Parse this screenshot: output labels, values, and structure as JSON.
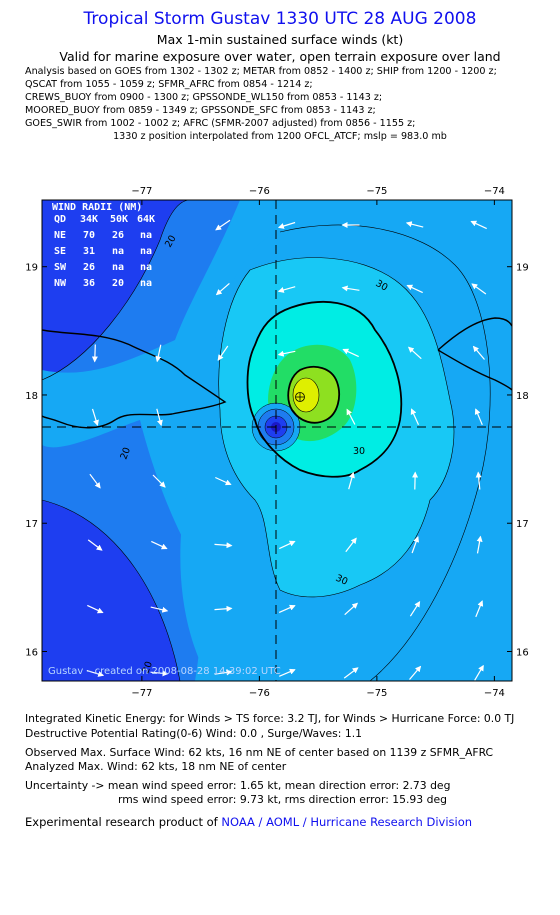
{
  "header": {
    "title": "Tropical Storm Gustav 1330 UTC 28 AUG 2008",
    "subtitle1": "Max 1-min sustained surface winds (kt)",
    "subtitle2": "Valid for marine exposure over water, open terrain exposure over land",
    "sources": [
      "Analysis based on  GOES from 1302 - 1302 z;  METAR from 0852 - 1400 z;  SHIP from 1200 - 1200 z;",
      "QSCAT from 1055 - 1059 z;  SFMR_AFRC from 0854 - 1214 z;",
      "CREWS_BUOY from 0900 - 1300 z;  GPSSONDE_WL150 from 0853 - 1143 z;",
      "MOORED_BUOY from 0859 - 1349 z;  GPSSONDE_SFC from 0853 - 1143 z;",
      "GOES_SWIR from 1002 - 1002 z;  AFRC (SFMR-2007 adjusted) from 0856 - 1155 z;",
      "1330 z position interpolated from 1200 OFCL_ATCF; mslp = 983.0 mb"
    ]
  },
  "map": {
    "lon_labels": [
      "−77",
      "−76",
      "−75",
      "−74"
    ],
    "lat_labels": [
      "19",
      "18",
      "17",
      "16"
    ],
    "lon_values": [
      -77,
      -76,
      -75,
      -74
    ],
    "lat_values": [
      19,
      18,
      17,
      16
    ],
    "center": {
      "lon": -75.8,
      "lat": 17.75
    },
    "contour_labels": [
      "20",
      "20",
      "30",
      "30",
      "30",
      "20"
    ],
    "wind_radii": {
      "title": "WIND RADII (NM)",
      "header": [
        "QD",
        "34K",
        "50K",
        "64K"
      ],
      "rows": [
        [
          "NE",
          "70",
          "26",
          "na"
        ],
        [
          "SE",
          "31",
          "na",
          "na"
        ],
        [
          "SW",
          "26",
          "na",
          "na"
        ],
        [
          "NW",
          "36",
          "20",
          "na"
        ]
      ]
    },
    "credit": "Gustav – created on 2008-08-28 14:39:02 UTC",
    "colors": {
      "c_lt10": "#1e3ef0",
      "c_10_20": "#1e7cf0",
      "c_20_30": "#16a8f4",
      "c_30_40": "#18c8f5",
      "c_40_50": "#00ede4",
      "c_50_55": "#22dd66",
      "c_55_60": "#8ee020",
      "c_60plus": "#dfef00"
    }
  },
  "footer": {
    "ike": "Integrated Kinetic Energy:  for Winds > TS force: 3.2 TJ,  for Winds > Hurricane Force: 0.0 TJ",
    "dpr": "Destructive Potential Rating(0-6)   Wind: 0.0 , Surge/Waves: 1.1",
    "obs": "Observed Max. Surface Wind: 62 kts, 16 nm NE of center based on 1139 z SFMR_AFRC",
    "ana": "Analyzed Max. Wind: 62 kts, 18 nm NE of center",
    "unc1": "Uncertainty -> mean wind speed error: 1.65 kt,   mean direction error: 2.73 deg",
    "unc2": "rms wind speed error: 9.73 kt,   rms direction error: 15.93 deg",
    "credit_prefix": "Experimental research product of ",
    "credit_org": "NOAA / AOML / Hurricane Research Division"
  }
}
